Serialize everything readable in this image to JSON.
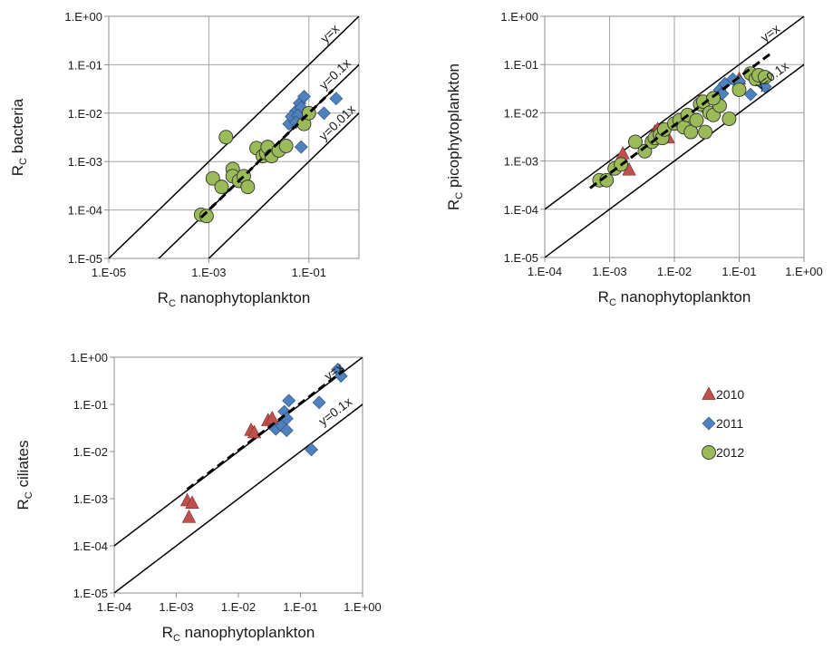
{
  "chart_data": [
    {
      "type": "scatter",
      "axis_scale": "log",
      "xlim": [
        1e-05,
        1
      ],
      "ylim": [
        1e-05,
        1
      ],
      "xticks": [
        "1.E-05",
        "1.E-03",
        "1.E-01"
      ],
      "xtick_values": [
        1e-05,
        0.001,
        0.1
      ],
      "yticks": [
        "1.E-05",
        "1.E-04",
        "1.E-03",
        "1.E-02",
        "1.E-01",
        "1.E+00"
      ],
      "ytick_values": [
        1e-05,
        0.0001,
        0.001,
        0.01,
        0.1,
        1
      ],
      "grid": true,
      "xlabel": "R",
      "xlabel_sub": "C",
      "xlabel_rest": " nanophytoplankton",
      "ylabel": "R",
      "ylabel_sub": "C",
      "ylabel_rest": " bacteria",
      "reference_lines": [
        {
          "label": "y=x",
          "factor": 1,
          "label_x": 0.3,
          "label_y": 0.38
        },
        {
          "label": "y=0.1x",
          "factor": 0.1,
          "label_x": 0.38,
          "label_y": 0.055
        },
        {
          "label": "y=0.01x",
          "factor": 0.01,
          "label_x": 0.42,
          "label_y": 0.0055
        }
      ],
      "fit_line": {
        "slope": 1.0,
        "intercept_factor": 0.1,
        "x_range": [
          0.0007,
          0.3
        ]
      },
      "series": [
        {
          "name": "2010",
          "marker": "triangle",
          "color": "#c0504d",
          "points": []
        },
        {
          "name": "2011",
          "marker": "diamond",
          "color": "#4f81bd",
          "points": [
            [
              0.055,
              0.011
            ],
            [
              0.065,
              0.016
            ],
            [
              0.08,
              0.022
            ],
            [
              0.07,
              0.013
            ],
            [
              0.04,
              0.006
            ],
            [
              0.045,
              0.0085
            ],
            [
              0.06,
              0.009
            ],
            [
              0.055,
              0.0065
            ],
            [
              0.2,
              0.01
            ],
            [
              0.35,
              0.02
            ],
            [
              0.07,
              0.002
            ]
          ]
        },
        {
          "name": "2012",
          "marker": "circle",
          "color": "#9bbb59",
          "points": [
            [
              0.0007,
              8e-05
            ],
            [
              0.0009,
              7.5e-05
            ],
            [
              0.0012,
              0.00045
            ],
            [
              0.0018,
              0.0003
            ],
            [
              0.0022,
              0.0032
            ],
            [
              0.003,
              0.0007
            ],
            [
              0.003,
              0.0005
            ],
            [
              0.004,
              0.0004
            ],
            [
              0.005,
              0.0005
            ],
            [
              0.006,
              0.0003
            ],
            [
              0.009,
              0.0019
            ],
            [
              0.012,
              0.0013
            ],
            [
              0.014,
              0.0015
            ],
            [
              0.015,
              0.002
            ],
            [
              0.018,
              0.0013
            ],
            [
              0.025,
              0.0017
            ],
            [
              0.035,
              0.0021
            ],
            [
              0.08,
              0.006
            ],
            [
              0.1,
              0.01
            ]
          ]
        }
      ]
    },
    {
      "type": "scatter",
      "axis_scale": "log",
      "xlim": [
        0.0001,
        1
      ],
      "ylim": [
        1e-05,
        1
      ],
      "xticks": [
        "1.E-04",
        "1.E-03",
        "1.E-02",
        "1.E-01",
        "1.E+00"
      ],
      "xtick_values": [
        0.0001,
        0.001,
        0.01,
        0.1,
        1
      ],
      "yticks": [
        "1.E-05",
        "1.E-04",
        "1.E-03",
        "1.E-02",
        "1.E-01",
        "1.E+00"
      ],
      "ytick_values": [
        1e-05,
        0.0001,
        0.001,
        0.01,
        0.1,
        1
      ],
      "grid": true,
      "xlabel": "R",
      "xlabel_sub": "C",
      "xlabel_rest": " nanophytoplankton",
      "ylabel": "R",
      "ylabel_sub": "C",
      "ylabel_rest": " picophytoplankton",
      "reference_lines": [
        {
          "label": "y=x",
          "factor": 1,
          "label_x": 0.33,
          "label_y": 0.38
        },
        {
          "label": "y=0.1x",
          "factor": 0.1,
          "label_x": 0.35,
          "label_y": 0.05
        }
      ],
      "fit_line": {
        "slope": 1.0,
        "intercept_factor": 0.55,
        "x_range": [
          0.0005,
          0.3
        ]
      },
      "series": [
        {
          "name": "2010",
          "marker": "triangle",
          "color": "#c0504d",
          "points": [
            [
              0.0016,
              0.0014
            ],
            [
              0.002,
              0.00065
            ],
            [
              0.005,
              0.004
            ],
            [
              0.0055,
              0.0045
            ],
            [
              0.008,
              0.003
            ],
            [
              0.025,
              0.018
            ],
            [
              0.1,
              0.05
            ]
          ]
        },
        {
          "name": "2011",
          "marker": "diamond",
          "color": "#4f81bd",
          "points": [
            [
              0.03,
              0.012
            ],
            [
              0.04,
              0.02
            ],
            [
              0.05,
              0.03
            ],
            [
              0.06,
              0.04
            ],
            [
              0.055,
              0.025
            ],
            [
              0.08,
              0.05
            ],
            [
              0.15,
              0.024
            ],
            [
              0.25,
              0.035
            ],
            [
              0.2,
              0.06
            ],
            [
              0.1,
              0.045
            ]
          ]
        },
        {
          "name": "2012",
          "marker": "circle",
          "color": "#9bbb59",
          "points": [
            [
              0.0007,
              0.0004
            ],
            [
              0.0009,
              0.0004
            ],
            [
              0.0012,
              0.0007
            ],
            [
              0.0015,
              0.00085
            ],
            [
              0.0025,
              0.0025
            ],
            [
              0.0035,
              0.0016
            ],
            [
              0.0045,
              0.0025
            ],
            [
              0.005,
              0.003
            ],
            [
              0.006,
              0.0035
            ],
            [
              0.0065,
              0.003
            ],
            [
              0.007,
              0.0045
            ],
            [
              0.01,
              0.006
            ],
            [
              0.012,
              0.007
            ],
            [
              0.014,
              0.005
            ],
            [
              0.016,
              0.009
            ],
            [
              0.018,
              0.004
            ],
            [
              0.022,
              0.007
            ],
            [
              0.025,
              0.015
            ],
            [
              0.028,
              0.017
            ],
            [
              0.03,
              0.004
            ],
            [
              0.035,
              0.01
            ],
            [
              0.04,
              0.009
            ],
            [
              0.05,
              0.014
            ],
            [
              0.07,
              0.0075
            ],
            [
              0.1,
              0.03
            ],
            [
              0.15,
              0.065
            ],
            [
              0.18,
              0.05
            ],
            [
              0.2,
              0.06
            ],
            [
              0.25,
              0.055
            ],
            [
              0.04,
              0.02
            ]
          ]
        }
      ]
    },
    {
      "type": "scatter",
      "axis_scale": "log",
      "xlim": [
        0.0001,
        1
      ],
      "ylim": [
        1e-05,
        1
      ],
      "xticks": [
        "1.E-04",
        "1.E-03",
        "1.E-02",
        "1.E-01",
        "1.E+00"
      ],
      "xtick_values": [
        0.0001,
        0.001,
        0.01,
        0.1,
        1
      ],
      "yticks": [
        "1.E-05",
        "1.E-04",
        "1.E-03",
        "1.E-02",
        "1.E-01",
        "1.E+00"
      ],
      "ytick_values": [
        1e-05,
        0.0001,
        0.001,
        0.01,
        0.1,
        1
      ],
      "grid": false,
      "xlabel": "R",
      "xlabel_sub": "C",
      "xlabel_rest": " nanophytoplankton",
      "ylabel": "R",
      "ylabel_sub": "C",
      "ylabel_rest": " ciliates",
      "reference_lines": [
        {
          "label": "y=x",
          "factor": 1,
          "label_x": 0.38,
          "label_y": 0.42
        },
        {
          "label": "y=0.1x",
          "factor": 0.1,
          "label_x": 0.4,
          "label_y": 0.06
        }
      ],
      "fit_line": {
        "slope": 1.0,
        "intercept_factor": 1.05,
        "x_range": [
          0.0015,
          0.5
        ]
      },
      "series": [
        {
          "name": "2010",
          "marker": "triangle",
          "color": "#c0504d",
          "points": [
            [
              0.0015,
              0.0009
            ],
            [
              0.0016,
              0.0004
            ],
            [
              0.0018,
              0.0008
            ],
            [
              0.016,
              0.028
            ],
            [
              0.018,
              0.025
            ],
            [
              0.03,
              0.045
            ],
            [
              0.035,
              0.05
            ]
          ]
        },
        {
          "name": "2011",
          "marker": "diamond",
          "color": "#4f81bd",
          "points": [
            [
              0.04,
              0.03
            ],
            [
              0.05,
              0.035
            ],
            [
              0.055,
              0.07
            ],
            [
              0.06,
              0.05
            ],
            [
              0.065,
              0.12
            ],
            [
              0.06,
              0.028
            ],
            [
              0.2,
              0.11
            ],
            [
              0.4,
              0.55
            ],
            [
              0.45,
              0.4
            ],
            [
              0.15,
              0.011
            ]
          ]
        },
        {
          "name": "2012",
          "marker": "circle",
          "color": "#9bbb59",
          "points": []
        }
      ]
    }
  ],
  "legend": {
    "placement": "right",
    "items": [
      {
        "label": "2010",
        "marker": "triangle",
        "color": "#c0504d"
      },
      {
        "label": "2011",
        "marker": "diamond",
        "color": "#4f81bd"
      },
      {
        "label": "2012",
        "marker": "circle",
        "color": "#9bbb59"
      }
    ]
  }
}
